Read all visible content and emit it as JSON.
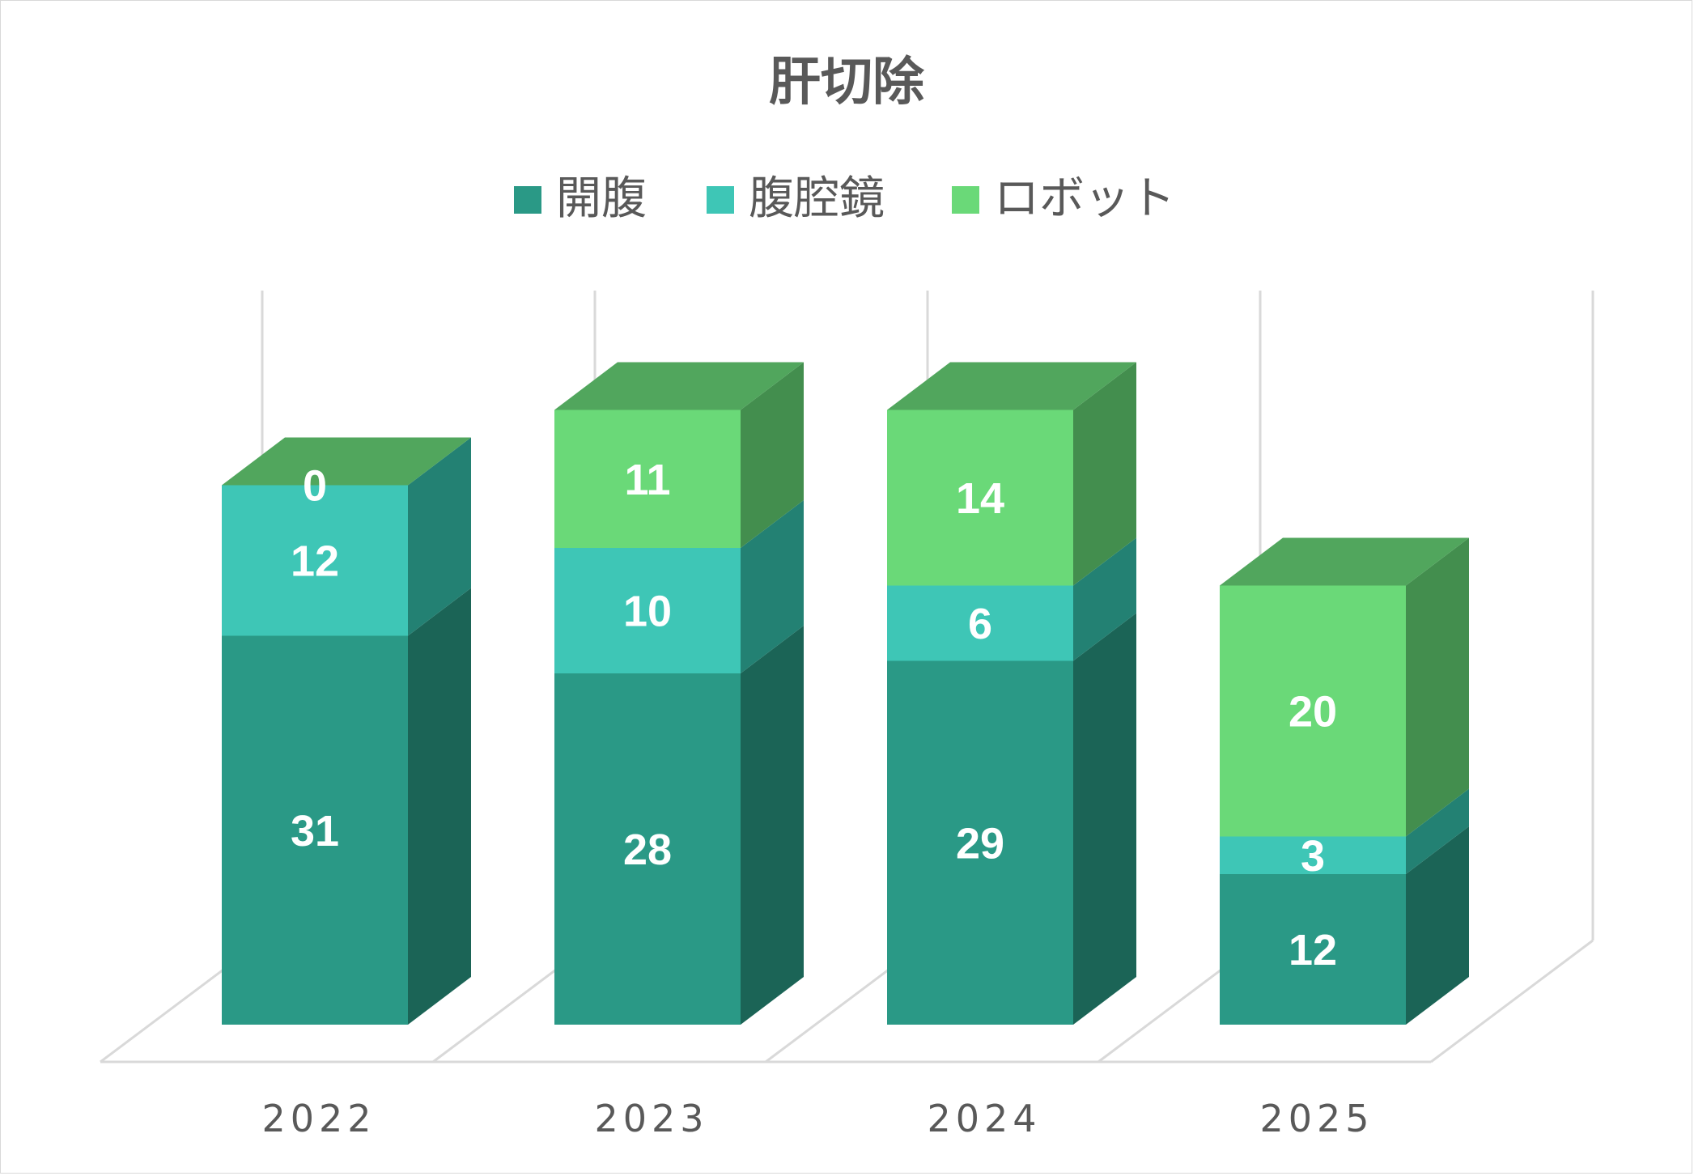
{
  "chart_data": {
    "type": "bar",
    "stacked": true,
    "three_d": true,
    "title": "肝切除",
    "legend_position": "top",
    "categories": [
      "2022",
      "2023",
      "2024",
      "2025"
    ],
    "series": [
      {
        "name": "開腹",
        "values": [
          31,
          28,
          29,
          12
        ],
        "color": "#2a9986",
        "side_color": "#1b6456",
        "top_color": "#23806e"
      },
      {
        "name": "腹腔鏡",
        "values": [
          12,
          10,
          6,
          3
        ],
        "color": "#3ec6b6",
        "side_color": "#238173",
        "top_color": "#2fa597"
      },
      {
        "name": "ロボット",
        "values": [
          0,
          11,
          14,
          20
        ],
        "color": "#6ad978",
        "side_color": "#438e4e",
        "top_color": "#51a65d"
      }
    ],
    "ylim": [
      0,
      55
    ],
    "grid": true,
    "y_axis_labels": false
  }
}
